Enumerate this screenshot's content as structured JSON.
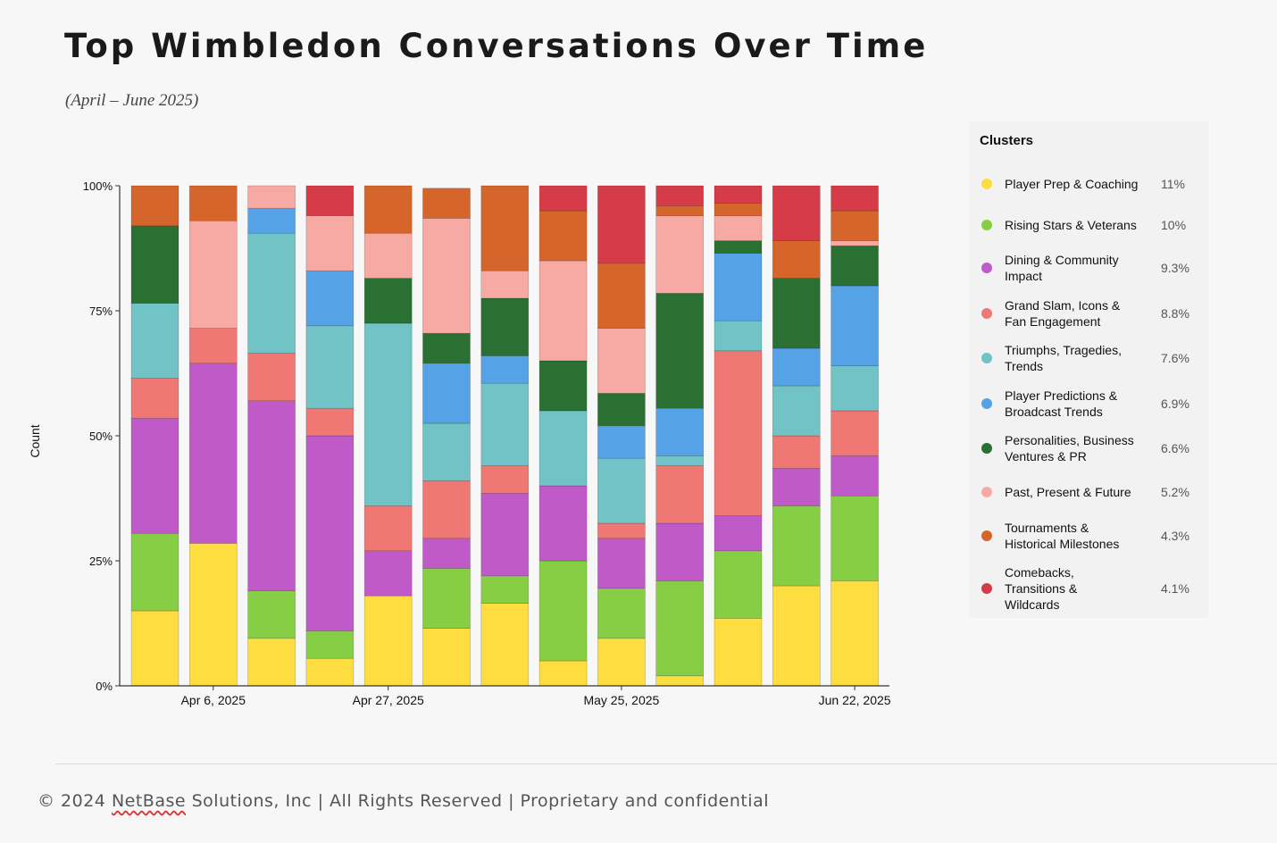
{
  "page": {
    "title": "Top Wimbledon Conversations Over Time",
    "subtitle": "(April – June 2025)"
  },
  "colors": {
    "Player Prep & Coaching": "#fddd40",
    "Rising Stars & Veterans": "#86cf45",
    "Dining & Community Impact": "#c05ac8",
    "Grand Slam, Icons & Fan Engagement": "#ef7875",
    "Triumphs, Tragedies, Trends": "#72c3c5",
    "Player Predictions & Broadcast Trends": "#56a2e6",
    "Personalities, Business Ventures & PR": "#2b7033",
    "Past, Present & Future": "#f7aaa4",
    "Tournaments & Historical Milestones": "#d6652c",
    "Comebacks, Transitions & Wildcards": "#d63c47"
  },
  "legend": {
    "title": "Clusters",
    "items": [
      {
        "lines": [
          "Player Prep & Coaching"
        ],
        "pct": "11%"
      },
      {
        "lines": [
          "Rising Stars & Veterans"
        ],
        "pct": "10%"
      },
      {
        "lines": [
          "Dining & Community",
          "Impact"
        ],
        "pct": "9.3%"
      },
      {
        "lines": [
          "Grand Slam, Icons &",
          "Fan Engagement"
        ],
        "pct": "8.8%"
      },
      {
        "lines": [
          "Triumphs, Tragedies,",
          "Trends"
        ],
        "pct": "7.6%"
      },
      {
        "lines": [
          "Player Predictions &",
          "Broadcast Trends"
        ],
        "pct": "6.9%"
      },
      {
        "lines": [
          "Personalities, Business",
          "Ventures & PR"
        ],
        "pct": "6.6%"
      },
      {
        "lines": [
          "Past, Present & Future"
        ],
        "pct": "5.2%"
      },
      {
        "lines": [
          "Tournaments &",
          "Historical Milestones"
        ],
        "pct": "4.3%"
      },
      {
        "lines": [
          "Comebacks,",
          "Transitions &",
          "Wildcards"
        ],
        "pct": "4.1%"
      }
    ]
  },
  "chart_data": {
    "type": "bar",
    "stacked": true,
    "normalized": true,
    "ylabel": "Count",
    "yticks": [
      "0%",
      "25%",
      "50%",
      "75%",
      "100%"
    ],
    "ylim": [
      0,
      100
    ],
    "x_tick_labels": [
      {
        "label": "Apr 6, 2025",
        "index": 1.5
      },
      {
        "label": "Apr 27, 2025",
        "index": 4.5
      },
      {
        "label": "May 25, 2025",
        "index": 8.5
      },
      {
        "label": "Jun 22, 2025",
        "index": 12.5
      }
    ],
    "series": [
      {
        "name": "Player Prep & Coaching",
        "values": [
          15,
          28.5,
          9.5,
          5.5,
          18,
          11.5,
          16.5,
          5,
          9.5,
          2,
          13.5,
          20,
          21
        ]
      },
      {
        "name": "Rising Stars & Veterans",
        "values": [
          15.5,
          0,
          9.5,
          5.5,
          0,
          12,
          5.5,
          20,
          10,
          19,
          13.5,
          16,
          17
        ]
      },
      {
        "name": "Dining & Community Impact",
        "values": [
          23,
          36,
          38,
          39,
          9,
          6,
          16.5,
          15,
          10,
          11.5,
          7,
          7.5,
          8
        ]
      },
      {
        "name": "Grand Slam, Icons & Fan Engagement",
        "values": [
          8,
          7,
          9.5,
          5.5,
          9,
          11.5,
          5.5,
          0,
          3,
          11.5,
          33,
          6.5,
          9
        ]
      },
      {
        "name": "Triumphs, Tragedies, Trends",
        "values": [
          15,
          0,
          24,
          16.5,
          36.5,
          11.5,
          16.5,
          15,
          13,
          2,
          6,
          10,
          9
        ]
      },
      {
        "name": "Player Predictions & Broadcast Trends",
        "values": [
          0,
          0,
          5,
          11,
          0,
          12,
          5.5,
          0,
          6.5,
          9.5,
          13.5,
          7.5,
          16
        ]
      },
      {
        "name": "Personalities, Business Ventures & PR",
        "values": [
          15.5,
          0,
          0,
          0,
          9,
          6,
          11.5,
          10,
          6.5,
          23,
          2.5,
          14,
          8
        ]
      },
      {
        "name": "Past, Present & Future",
        "values": [
          0,
          21.5,
          4.5,
          11,
          9,
          23,
          5.5,
          20,
          13,
          15.5,
          5,
          0,
          1
        ]
      },
      {
        "name": "Tournaments & Historical Milestones",
        "values": [
          8,
          7,
          0,
          0,
          9.5,
          6,
          17,
          10,
          13,
          2,
          2.5,
          7.5,
          6
        ]
      },
      {
        "name": "Comebacks, Transitions & Wildcards",
        "values": [
          0,
          0,
          0,
          6,
          0,
          0,
          0,
          5,
          15.5,
          4,
          3.5,
          11,
          5
        ]
      }
    ]
  },
  "footer": {
    "prefix": "© 2024 ",
    "brand": "NetBase",
    "rest": " Solutions, Inc | All Rights Reserved | Proprietary and confidential"
  }
}
